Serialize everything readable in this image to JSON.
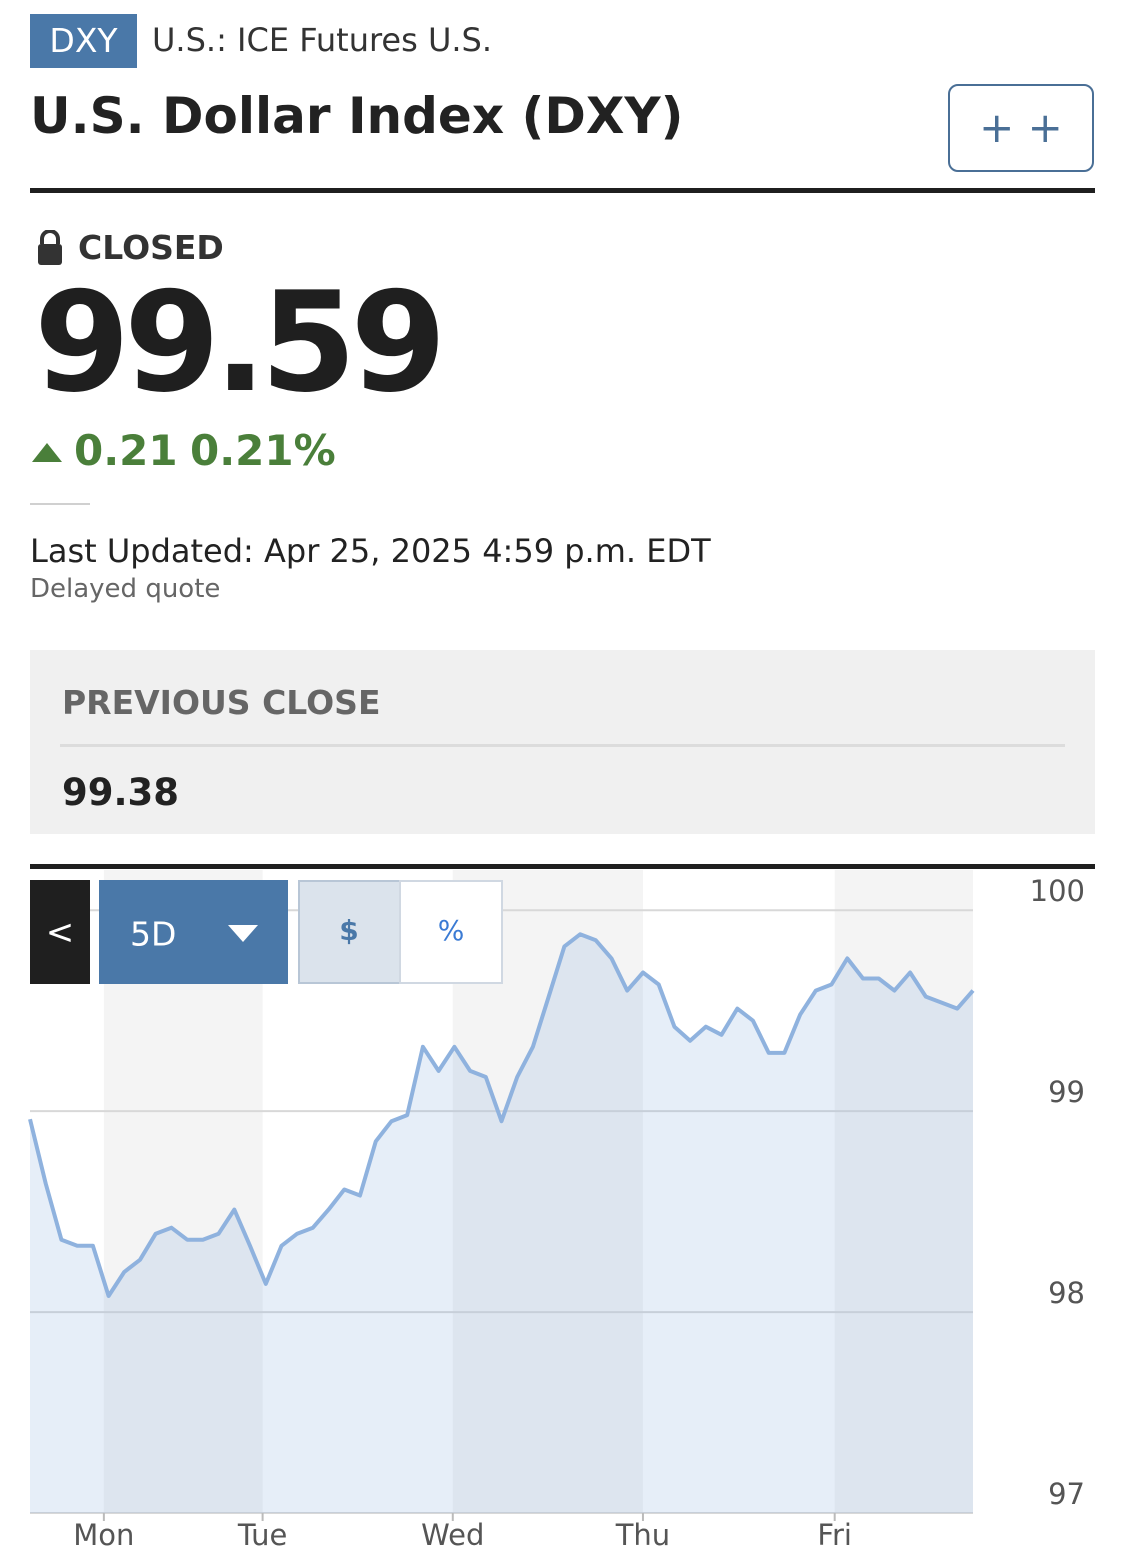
{
  "header": {
    "symbol": "DXY",
    "exchange": "U.S.: ICE Futures U.S.",
    "title": "U.S. Dollar Index (DXY)",
    "watchlist_button": "+ +"
  },
  "quote": {
    "status": "CLOSED",
    "price": 99.59,
    "change": 0.21,
    "change_percent": "0.21%",
    "last_updated": "Last Updated: Apr 25, 2025 4:59 p.m. EDT",
    "delay_note": "Delayed quote"
  },
  "previous_close": {
    "label": "PREVIOUS CLOSE",
    "value": 99.38
  },
  "chart_controls": {
    "back": "<",
    "range": "5D",
    "currency": "$",
    "percent": "%"
  },
  "chart_data": {
    "type": "area",
    "values": [
      98.96,
      98.64,
      98.36,
      98.33,
      98.33,
      98.08,
      98.2,
      98.26,
      98.39,
      98.42,
      98.36,
      98.36,
      98.39,
      98.51,
      98.33,
      98.14,
      98.33,
      98.39,
      98.42,
      98.51,
      98.61,
      98.58,
      98.85,
      98.95,
      98.98,
      99.32,
      99.2,
      99.32,
      99.2,
      99.17,
      98.95,
      99.17,
      99.32,
      99.57,
      99.82,
      99.88,
      99.85,
      99.76,
      99.6,
      99.69,
      99.63,
      99.42,
      99.35,
      99.42,
      99.38,
      99.51,
      99.45,
      99.29,
      99.29,
      99.48,
      99.6,
      99.63,
      99.76,
      99.66,
      99.66,
      99.6,
      99.69,
      99.57,
      99.54,
      99.51,
      99.6
    ],
    "color": "#8fb2de",
    "xlim": [
      0,
      60
    ],
    "xticks": [
      {
        "value": 4.7,
        "label": "Mon"
      },
      {
        "value": 14.8,
        "label": "Tue"
      },
      {
        "value": 26.9,
        "label": "Wed"
      },
      {
        "value": 39.0,
        "label": "Thu"
      },
      {
        "value": 51.2,
        "label": "Fri"
      }
    ],
    "ylim": [
      97,
      100.2
    ],
    "yticks": [
      97,
      98,
      99,
      100
    ],
    "grid": true
  }
}
